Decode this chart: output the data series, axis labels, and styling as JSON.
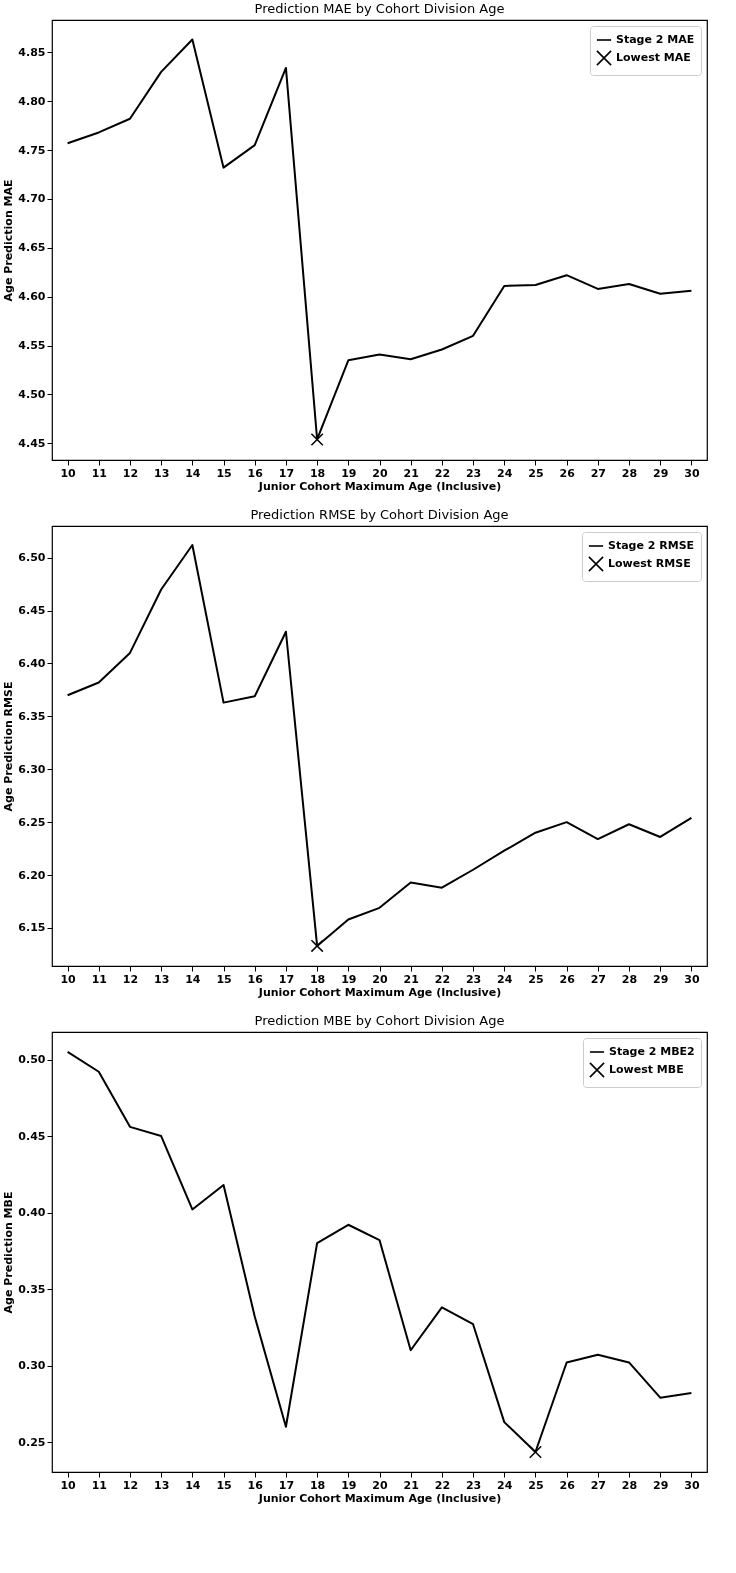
{
  "chart_data": [
    {
      "type": "line",
      "title": "Prediction MAE by Cohort Division Age",
      "xlabel": "Junior Cohort Maximum Age (Inclusive)",
      "ylabel": "Age Prediction MAE",
      "categories": [
        "10",
        "11",
        "12",
        "13",
        "14",
        "15",
        "16",
        "17",
        "18",
        "19",
        "20",
        "21",
        "22",
        "23",
        "24",
        "25",
        "26",
        "27",
        "28",
        "29",
        "30"
      ],
      "series": [
        {
          "name": "Stage 2 MAE",
          "color": "#000000",
          "type": "line",
          "marker": "none",
          "line_style": "solid",
          "values": [
            4.757,
            4.768,
            4.782,
            4.83,
            4.863,
            4.732,
            4.755,
            4.834,
            4.454,
            4.535,
            4.541,
            4.536,
            4.546,
            4.56,
            4.611,
            4.612,
            4.622,
            4.608,
            4.613,
            4.603,
            4.606
          ]
        },
        {
          "name": "Lowest MAE",
          "color": "#000000",
          "type": "scatter",
          "marker": "cross",
          "x": [
            "18"
          ],
          "values": [
            4.454
          ]
        }
      ],
      "ylim": [
        4.433,
        4.883
      ],
      "yticks": [
        4.45,
        {
          "value": 4.5,
          "label": "4.50"
        },
        4.55,
        {
          "value": 4.6,
          "label": "4.60"
        },
        4.65,
        {
          "value": 4.7,
          "label": "4.70"
        },
        4.75,
        {
          "value": 4.8,
          "label": "4.80"
        },
        4.85
      ],
      "legend": "top right"
    },
    {
      "type": "line",
      "title": "Prediction RMSE by Cohort Division Age",
      "xlabel": "Junior Cohort Maximum Age (Inclusive)",
      "ylabel": "Age Prediction RMSE",
      "categories": [
        "10",
        "11",
        "12",
        "13",
        "14",
        "15",
        "16",
        "17",
        "18",
        "19",
        "20",
        "21",
        "22",
        "23",
        "24",
        "25",
        "26",
        "27",
        "28",
        "29",
        "30"
      ],
      "series": [
        {
          "name": "Stage 2 RMSE",
          "color": "#000000",
          "type": "line",
          "marker": "none",
          "line_style": "solid",
          "values": [
            6.37,
            6.382,
            6.41,
            6.47,
            6.512,
            6.363,
            6.369,
            6.43,
            6.133,
            6.158,
            6.169,
            6.193,
            6.188,
            6.205,
            6.223,
            6.24,
            6.25,
            6.234,
            6.248,
            6.236,
            6.254
          ]
        },
        {
          "name": "Lowest RMSE",
          "color": "#000000",
          "type": "scatter",
          "marker": "cross",
          "x": [
            "18"
          ],
          "values": [
            6.133
          ]
        }
      ],
      "ylim": [
        6.114,
        6.53
      ],
      "yticks": [
        6.15,
        {
          "value": 6.2,
          "label": "6.20"
        },
        6.25,
        {
          "value": 6.3,
          "label": "6.30"
        },
        6.35,
        {
          "value": 6.4,
          "label": "6.40"
        },
        6.45,
        {
          "value": 6.5,
          "label": "6.50"
        }
      ],
      "legend": "top right"
    },
    {
      "type": "line",
      "title": "Prediction MBE by Cohort Division Age",
      "xlabel": "Junior Cohort Maximum Age (Inclusive)",
      "ylabel": "Age Prediction MBE",
      "categories": [
        "10",
        "11",
        "12",
        "13",
        "14",
        "15",
        "16",
        "17",
        "18",
        "19",
        "20",
        "21",
        "22",
        "23",
        "24",
        "25",
        "26",
        "27",
        "28",
        "29",
        "30"
      ],
      "series": [
        {
          "name": "Stage 2 MBE2",
          "color": "#000000",
          "type": "line",
          "marker": "none",
          "line_style": "solid",
          "values": [
            0.505,
            0.492,
            0.456,
            0.45,
            0.402,
            0.418,
            0.332,
            0.26,
            0.38,
            0.392,
            0.382,
            0.31,
            0.338,
            0.327,
            0.263,
            0.2435,
            0.302,
            0.307,
            0.302,
            0.279,
            0.282
          ]
        },
        {
          "name": "Lowest MBE",
          "color": "#000000",
          "type": "scatter",
          "marker": "cross",
          "x": [
            "25"
          ],
          "values": [
            0.2435
          ]
        }
      ],
      "ylim": [
        0.2304,
        0.518
      ],
      "yticks": [
        0.25,
        {
          "value": 0.3,
          "label": "0.30"
        },
        0.35,
        {
          "value": 0.4,
          "label": "0.40"
        },
        0.45,
        {
          "value": 0.5,
          "label": "0.50"
        }
      ],
      "legend": "top right"
    }
  ]
}
